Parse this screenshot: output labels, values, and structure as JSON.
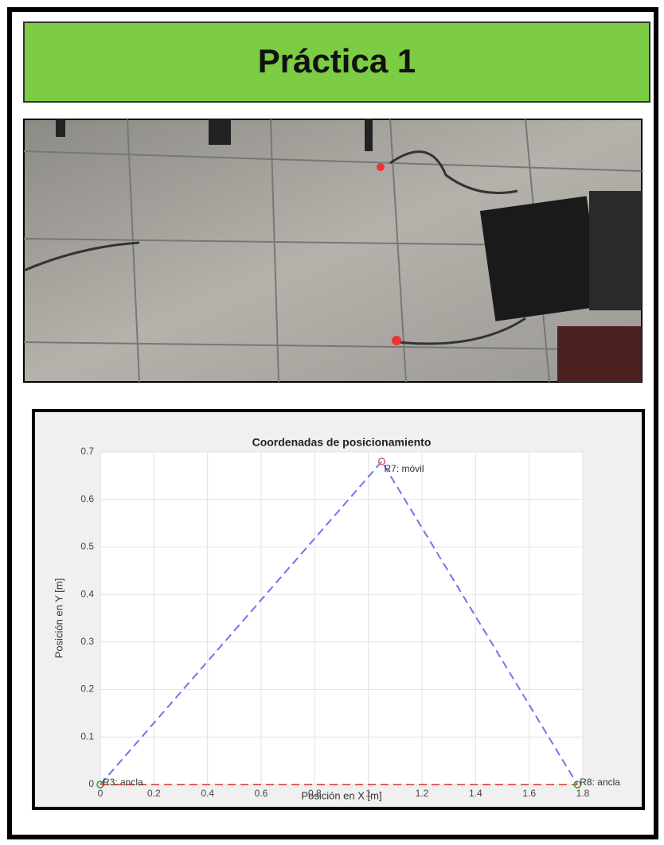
{
  "header": {
    "title": "Práctica 1"
  },
  "chart_data": {
    "type": "line",
    "title": "Coordenadas de posicionamiento",
    "xlabel": "Posición en X [m]",
    "ylabel": "Posición en Y [m]",
    "xlim": [
      0,
      1.8
    ],
    "ylim": [
      0,
      0.7
    ],
    "xticks": [
      0,
      0.2,
      0.4,
      0.6,
      0.8,
      1,
      1.2,
      1.4,
      1.6,
      1.8
    ],
    "yticks": [
      0,
      0.1,
      0.2,
      0.3,
      0.4,
      0.5,
      0.6,
      0.7
    ],
    "grid": true,
    "line_style": "dashed",
    "series": [
      {
        "color": "#7373ee",
        "x": [
          0,
          1.05,
          1.78
        ],
        "values": [
          0,
          0.68,
          0
        ]
      },
      {
        "color": "#e06060",
        "x": [
          0,
          1.78
        ],
        "values": [
          0,
          0
        ]
      }
    ],
    "points": {
      "x": [
        0,
        1.05,
        1.78
      ],
      "values": [
        0,
        0.68,
        0
      ],
      "labels": [
        "R3: ancla",
        "R7: móvil",
        "R8: ancla"
      ],
      "colors": [
        "#2ca02c",
        "#e06060",
        "#2ca02c"
      ]
    }
  }
}
